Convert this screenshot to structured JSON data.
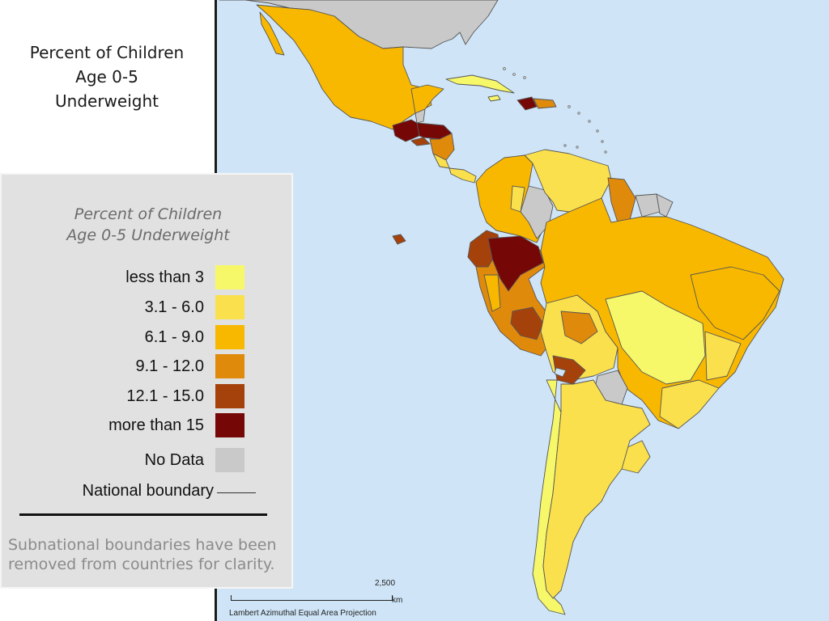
{
  "slide_title": "Percent of Children\nAge 0-5\nUnderweight",
  "legend": {
    "title": "Percent of Children\nAge 0-5 Underweight",
    "items": [
      {
        "label": "less than 3",
        "color": "#f7f76a"
      },
      {
        "label": "3.1 - 6.0",
        "color": "#fbe04d"
      },
      {
        "label": "6.1 - 9.0",
        "color": "#f9b800"
      },
      {
        "label": "9.1 - 12.0",
        "color": "#e08a0c"
      },
      {
        "label": "12.1 - 15.0",
        "color": "#a5420c"
      },
      {
        "label": "more than 15",
        "color": "#760707"
      },
      {
        "label": "No Data",
        "color": "#c9c9c9"
      }
    ],
    "boundary_label": "National boundary",
    "note": "Subnational boundaries have been\nremoved from countries for clarity."
  },
  "scale": {
    "value": "2,500",
    "unit": "km",
    "projection": "Lambert Azimuthal Equal Area Projection"
  },
  "colors": {
    "ocean": "#cfe5f7",
    "land_no_data": "#c9c9c9",
    "boundary": "#555555"
  }
}
